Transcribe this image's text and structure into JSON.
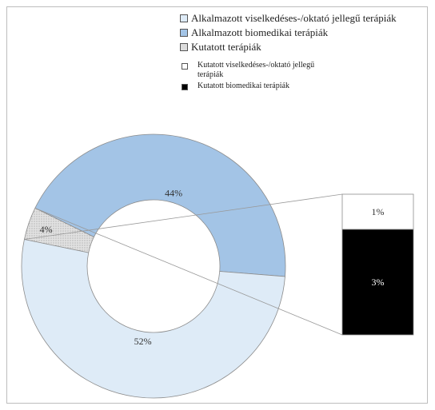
{
  "chart_data": {
    "type": "pie",
    "variant": "donut with stacked-bar breakdown",
    "slices": [
      {
        "label": "Alkalmazott biomedikai terápiák",
        "value": 44,
        "display": "44%",
        "color": "#a3c4e6"
      },
      {
        "label": "Kutatott terápiák",
        "value": 4,
        "display": "4%",
        "color": "#dcdcdc",
        "hatched": true
      },
      {
        "label": "Alkalmazott viselkedéses-/oktató jellegű terápiák",
        "value": 52,
        "display": "52%",
        "color": "#deebf7"
      }
    ],
    "breakdown": {
      "of": "Kutatott terápiák",
      "segments": [
        {
          "label": "Kutatott viselkedéses-/oktató jellegű terápiák",
          "value": 1,
          "display": "1%",
          "color": "#ffffff"
        },
        {
          "label": "Kutatott biomedikai terápiák",
          "value": 3,
          "display": "3%",
          "color": "#000000"
        }
      ]
    },
    "legend": {
      "main": [
        {
          "text": "Alkalmazott viselkedéses-/oktató jellegű terápiák",
          "color": "#deebf7"
        },
        {
          "text": "Alkalmazott biomedikai terápiák",
          "color": "#a3c4e6"
        },
        {
          "text": "Kutatott terápiák",
          "color": "#dcdcdc"
        }
      ],
      "sub": [
        {
          "text": "Kutatott viselkedéses-/oktató jellegű terápiák",
          "color": "#ffffff"
        },
        {
          "text": "Kutatott biomedikai terápiák",
          "color": "#000000"
        }
      ],
      "placement": "top-right"
    }
  }
}
